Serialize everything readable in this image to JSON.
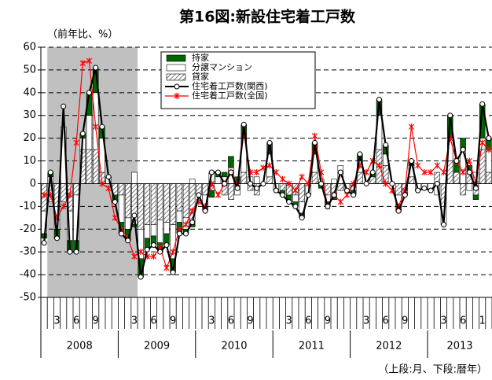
{
  "chart_data": {
    "type": "combo",
    "title": "第16図:新設住宅着工戸数",
    "y_axis_label": "（前年比、%）",
    "note": "（上段:月、下段:暦年）",
    "ylim": [
      -50,
      60
    ],
    "yticks": [
      -50,
      -40,
      -30,
      -20,
      -10,
      0,
      10,
      20,
      30,
      40,
      50,
      60
    ],
    "grid": true,
    "categories": [
      null,
      null,
      "3",
      null,
      null,
      "6",
      null,
      null,
      "9",
      null,
      null,
      null,
      null,
      null,
      "3",
      null,
      null,
      "6",
      null,
      null,
      "9",
      null,
      null,
      null,
      null,
      null,
      "3",
      null,
      null,
      "6",
      null,
      null,
      "9",
      null,
      null,
      null,
      null,
      null,
      "3",
      null,
      null,
      "6",
      null,
      null,
      "9",
      null,
      null,
      null,
      null,
      null,
      "3",
      null,
      null,
      "6",
      null,
      null,
      "9",
      null,
      null,
      null,
      null,
      null,
      "3",
      null,
      null,
      "6",
      null,
      null,
      "1",
      null
    ],
    "years": [
      "2008",
      "2009",
      "2010",
      "2011",
      "2012",
      "2013"
    ],
    "series": [
      {
        "name": "貸家",
        "type": "bar",
        "color": "#999999",
        "pattern": "hatch",
        "values": [
          -12,
          -8,
          -10,
          -8,
          -12,
          -5,
          15,
          15,
          15,
          5,
          0,
          -5,
          -5,
          -15,
          -18,
          -20,
          -18,
          -18,
          -16,
          -17,
          -18,
          -12,
          -15,
          -18,
          -5,
          -5,
          -3,
          0,
          -5,
          -7,
          0,
          5,
          -3,
          -5,
          0,
          3,
          0,
          -3,
          -5,
          -5,
          -8,
          0,
          5,
          0,
          -5,
          -5,
          -3,
          0,
          -3,
          5,
          0,
          3,
          15,
          8,
          0,
          -5,
          -3,
          3,
          0,
          0,
          0,
          5,
          -10,
          10,
          5,
          -5,
          5,
          -5,
          15,
          5
        ]
      },
      {
        "name": "分譲マンション",
        "type": "bar",
        "color": "#ffffff",
        "values": [
          -10,
          3,
          -10,
          25,
          -13,
          -20,
          5,
          15,
          25,
          15,
          3,
          0,
          -12,
          -5,
          5,
          -13,
          -6,
          -5,
          -10,
          -5,
          -15,
          -5,
          -5,
          2,
          0,
          -5,
          5,
          3,
          3,
          7,
          -5,
          15,
          3,
          3,
          0,
          10,
          -3,
          0,
          0,
          -3,
          -5,
          -5,
          8,
          2,
          -3,
          2,
          8,
          -3,
          0,
          5,
          0,
          0,
          15,
          5,
          0,
          -5,
          -2,
          5,
          -3,
          -2,
          -3,
          -5,
          -8,
          10,
          0,
          15,
          -3,
          5,
          5,
          10
        ]
      },
      {
        "name": "持家",
        "type": "bar",
        "color": "#006600",
        "values": [
          -2,
          2,
          -4,
          0,
          -5,
          -5,
          2,
          10,
          11,
          5,
          0,
          -3,
          -5,
          -5,
          -1,
          -8,
          -5,
          -4,
          -4,
          -5,
          -6,
          -5,
          -2,
          -1,
          0,
          -2,
          -3,
          2,
          2,
          5,
          3,
          6,
          0,
          0,
          0,
          5,
          0,
          -2,
          -3,
          -2,
          -2,
          0,
          5,
          -2,
          -2,
          -2,
          0,
          0,
          -2,
          3,
          0,
          2,
          7,
          4,
          0,
          -2,
          0,
          2,
          0,
          0,
          0,
          0,
          0,
          10,
          5,
          5,
          3,
          -2,
          15,
          5
        ]
      },
      {
        "name": "住宅着工戸数(関西)",
        "type": "line",
        "color": "#000000",
        "marker": "circle",
        "values": [
          -26,
          5,
          -24,
          34,
          -30,
          -30,
          22,
          40,
          51,
          25,
          3,
          -8,
          -22,
          -25,
          -14,
          -41,
          -29,
          -27,
          -30,
          -27,
          -39,
          -22,
          -22,
          -17,
          -5,
          -12,
          5,
          5,
          0,
          5,
          -2,
          26,
          0,
          -2,
          0,
          18,
          -3,
          -5,
          -8,
          -10,
          -15,
          -5,
          18,
          0,
          -10,
          -5,
          5,
          -3,
          -5,
          13,
          0,
          5,
          37,
          17,
          0,
          -12,
          -5,
          10,
          -3,
          -2,
          -3,
          0,
          -18,
          30,
          10,
          15,
          5,
          -2,
          35,
          20
        ]
      },
      {
        "name": "住宅着工戸数(全国)",
        "type": "line",
        "color": "#ff0000",
        "marker": "star",
        "values": [
          -5,
          -5,
          -15,
          -10,
          -5,
          18,
          53,
          54,
          25,
          0,
          -2,
          -15,
          -20,
          -24,
          -32,
          -30,
          -32,
          -32,
          -28,
          -37,
          -30,
          -20,
          -18,
          -12,
          -8,
          -10,
          0,
          -5,
          0,
          5,
          0,
          22,
          5,
          5,
          7,
          8,
          5,
          2,
          0,
          -3,
          3,
          0,
          21,
          5,
          -10,
          -5,
          -8,
          -5,
          0,
          8,
          5,
          10,
          8,
          0,
          -3,
          -10,
          -3,
          25,
          8,
          5,
          5,
          8,
          5,
          20,
          10,
          5,
          10,
          0,
          18,
          15
        ]
      }
    ]
  }
}
